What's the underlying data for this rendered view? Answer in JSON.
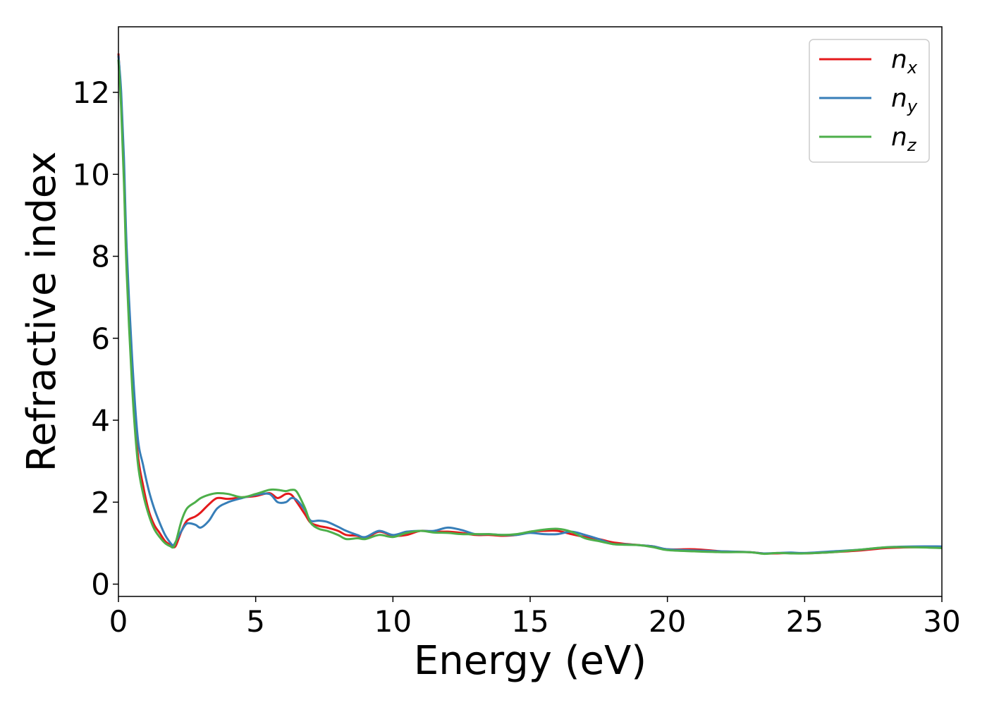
{
  "chart_data": {
    "type": "line",
    "xlabel": "Energy (eV)",
    "ylabel": "Refractive index",
    "xlim": [
      0,
      30
    ],
    "ylim": [
      -0.3,
      13.6
    ],
    "xticks": [
      0,
      5,
      10,
      15,
      20,
      25,
      30
    ],
    "yticks": [
      0,
      2,
      4,
      6,
      8,
      10,
      12
    ],
    "grid": false,
    "legend_position": "top-right",
    "series": [
      {
        "name": "n",
        "subscript": "x",
        "color": "#e41a1c",
        "x": [
          0,
          0.1,
          0.2,
          0.3,
          0.5,
          0.7,
          0.9,
          1.1,
          1.3,
          1.5,
          1.7,
          1.9,
          2.0,
          2.1,
          2.3,
          2.5,
          2.8,
          3.0,
          3.3,
          3.6,
          4.0,
          4.5,
          5.0,
          5.5,
          5.8,
          6.1,
          6.3,
          6.5,
          6.8,
          7.0,
          7.3,
          7.6,
          8.0,
          8.3,
          8.7,
          9.0,
          9.5,
          10.0,
          10.5,
          11.0,
          11.5,
          12.0,
          12.5,
          13.0,
          13.5,
          14.0,
          14.5,
          15.0,
          15.5,
          16.0,
          16.5,
          17.0,
          17.5,
          18.0,
          18.5,
          19.0,
          19.5,
          20.0,
          21.0,
          22.0,
          23.0,
          23.5,
          24.0,
          24.5,
          25.0,
          26.0,
          27.0,
          28.0,
          29.0,
          30.0
        ],
        "y": [
          12.95,
          11.8,
          10.0,
          7.8,
          5.0,
          3.2,
          2.4,
          1.8,
          1.45,
          1.25,
          1.05,
          0.95,
          0.9,
          0.95,
          1.3,
          1.55,
          1.65,
          1.75,
          1.95,
          2.1,
          2.08,
          2.12,
          2.15,
          2.22,
          2.1,
          2.2,
          2.18,
          2.0,
          1.7,
          1.5,
          1.42,
          1.38,
          1.3,
          1.2,
          1.18,
          1.12,
          1.28,
          1.18,
          1.2,
          1.3,
          1.28,
          1.28,
          1.25,
          1.2,
          1.2,
          1.18,
          1.2,
          1.28,
          1.3,
          1.3,
          1.22,
          1.15,
          1.1,
          1.02,
          0.98,
          0.95,
          0.92,
          0.85,
          0.85,
          0.8,
          0.78,
          0.75,
          0.75,
          0.76,
          0.75,
          0.78,
          0.82,
          0.88,
          0.9,
          0.9
        ]
      },
      {
        "name": "n",
        "subscript": "y",
        "color": "#377eb8",
        "x": [
          0,
          0.1,
          0.2,
          0.3,
          0.5,
          0.7,
          0.9,
          1.1,
          1.3,
          1.5,
          1.7,
          1.9,
          2.0,
          2.1,
          2.3,
          2.5,
          2.8,
          3.0,
          3.3,
          3.6,
          4.0,
          4.5,
          5.0,
          5.5,
          5.8,
          6.1,
          6.3,
          6.5,
          6.8,
          7.0,
          7.3,
          7.6,
          8.0,
          8.3,
          8.7,
          9.0,
          9.5,
          10.0,
          10.5,
          11.0,
          11.5,
          12.0,
          12.5,
          13.0,
          13.5,
          14.0,
          14.5,
          15.0,
          15.5,
          16.0,
          16.5,
          17.0,
          17.5,
          18.0,
          18.5,
          19.0,
          19.5,
          20.0,
          21.0,
          22.0,
          23.0,
          23.5,
          24.0,
          24.5,
          25.0,
          26.0,
          27.0,
          28.0,
          29.0,
          30.0
        ],
        "y": [
          12.9,
          12.0,
          10.4,
          8.2,
          5.5,
          3.6,
          2.9,
          2.3,
          1.85,
          1.5,
          1.2,
          1.0,
          0.95,
          1.05,
          1.3,
          1.48,
          1.45,
          1.38,
          1.55,
          1.85,
          2.0,
          2.1,
          2.18,
          2.2,
          2.0,
          2.0,
          2.1,
          2.05,
          1.8,
          1.55,
          1.55,
          1.52,
          1.4,
          1.3,
          1.2,
          1.15,
          1.3,
          1.2,
          1.28,
          1.3,
          1.3,
          1.38,
          1.32,
          1.22,
          1.22,
          1.2,
          1.2,
          1.25,
          1.22,
          1.22,
          1.28,
          1.2,
          1.1,
          0.98,
          0.97,
          0.95,
          0.92,
          0.85,
          0.82,
          0.8,
          0.78,
          0.75,
          0.76,
          0.77,
          0.76,
          0.8,
          0.84,
          0.9,
          0.92,
          0.92
        ]
      },
      {
        "name": "n",
        "subscript": "z",
        "color": "#4daf4a",
        "x": [
          0,
          0.1,
          0.2,
          0.3,
          0.5,
          0.7,
          0.9,
          1.1,
          1.3,
          1.5,
          1.7,
          1.9,
          2.0,
          2.1,
          2.3,
          2.5,
          2.8,
          3.0,
          3.3,
          3.6,
          4.0,
          4.5,
          5.0,
          5.5,
          5.8,
          6.1,
          6.3,
          6.5,
          6.8,
          7.0,
          7.3,
          7.6,
          8.0,
          8.3,
          8.7,
          9.0,
          9.5,
          10.0,
          10.5,
          11.0,
          11.5,
          12.0,
          12.5,
          13.0,
          13.5,
          14.0,
          14.5,
          15.0,
          15.5,
          16.0,
          16.5,
          17.0,
          17.5,
          18.0,
          18.5,
          19.0,
          19.5,
          20.0,
          21.0,
          22.0,
          23.0,
          23.5,
          24.0,
          24.5,
          25.0,
          26.0,
          27.0,
          28.0,
          29.0,
          30.0
        ],
        "y": [
          12.8,
          11.6,
          9.8,
          7.6,
          4.8,
          3.0,
          2.2,
          1.7,
          1.35,
          1.15,
          1.0,
          0.92,
          0.9,
          1.05,
          1.55,
          1.85,
          2.0,
          2.1,
          2.18,
          2.22,
          2.2,
          2.12,
          2.2,
          2.3,
          2.3,
          2.27,
          2.3,
          2.25,
          1.85,
          1.5,
          1.35,
          1.3,
          1.2,
          1.1,
          1.12,
          1.1,
          1.2,
          1.15,
          1.25,
          1.3,
          1.26,
          1.25,
          1.22,
          1.22,
          1.22,
          1.2,
          1.22,
          1.28,
          1.33,
          1.35,
          1.28,
          1.12,
          1.05,
          0.98,
          0.96,
          0.95,
          0.9,
          0.83,
          0.8,
          0.78,
          0.78,
          0.74,
          0.76,
          0.75,
          0.75,
          0.78,
          0.84,
          0.9,
          0.9,
          0.88
        ]
      }
    ]
  }
}
